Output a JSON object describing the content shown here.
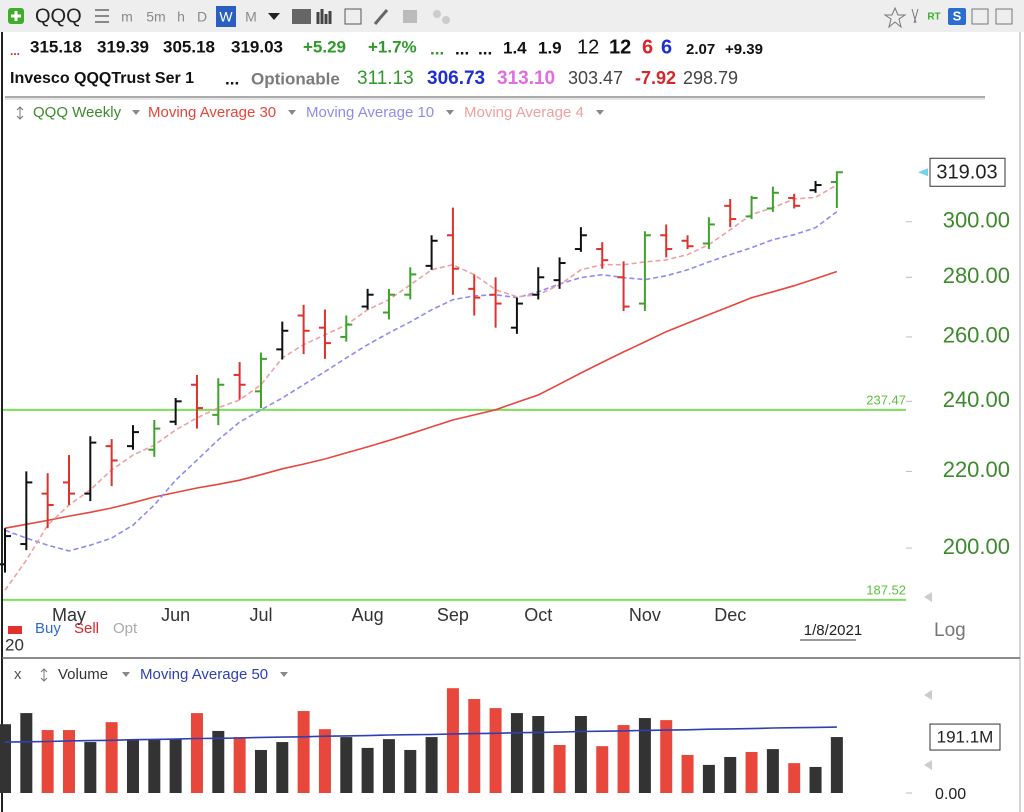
{
  "toolbar": {
    "symbol": "QQQ",
    "intervals": [
      "m",
      "5m",
      "h",
      "D",
      "W",
      "M"
    ],
    "badges": [
      "RT",
      "S"
    ]
  },
  "quote": {
    "line1": [
      "...",
      "315.18",
      "319.39",
      "305.18",
      "319.03",
      "+5.29",
      "+1.7%",
      "...",
      "...",
      "...",
      "1.4",
      "1.9",
      "12",
      "12",
      "6",
      "6",
      "2.07",
      "+9.39"
    ],
    "line2": [
      "Invesco QQQTrust Ser 1",
      "...",
      "Optionable",
      "311.13",
      "306.73",
      "313.10",
      "303.47",
      "-7.92",
      "298.79"
    ]
  },
  "ui": {
    "order_buttons": [
      "Buy",
      "Sell",
      "Opt"
    ],
    "year_fragment": "20",
    "scale_button": "Log",
    "close": "x"
  },
  "chart_data": [
    {
      "type": "ohlc",
      "name": "QQQ Weekly",
      "categories": [
        null,
        null,
        null,
        "May",
        null,
        null,
        null,
        null,
        "Jun",
        null,
        null,
        null,
        "Jul",
        null,
        null,
        null,
        null,
        "Aug",
        null,
        null,
        null,
        "Sep",
        null,
        null,
        null,
        "Oct",
        null,
        null,
        null,
        null,
        "Nov",
        null,
        null,
        null,
        "Dec",
        null,
        null,
        null,
        null,
        null
      ],
      "open": [
        196,
        201,
        214,
        217,
        214,
        227,
        227,
        226,
        234,
        245,
        236,
        248,
        243,
        256,
        267,
        263,
        260,
        270,
        268,
        274,
        284,
        295,
        276,
        274,
        263,
        274,
        279,
        290,
        290,
        280,
        271,
        295,
        293,
        292,
        306,
        302,
        305,
        309,
        312,
        315.18
      ],
      "high": [
        205,
        220,
        219.5,
        224.5,
        229.8,
        229,
        233,
        234.5,
        241,
        248,
        247,
        252,
        255,
        265,
        270.6,
        269,
        267,
        276,
        276,
        283.5,
        295,
        305.3,
        281,
        280,
        273,
        283.5,
        287,
        298,
        292.5,
        285.6,
        296.5,
        299,
        295,
        301.7,
        308.6,
        309.8,
        313.4,
        310.6,
        315.6,
        319.39
      ],
      "low": [
        194,
        199.5,
        205,
        211,
        212,
        216,
        226,
        224,
        233,
        232,
        233,
        240.5,
        238,
        252.8,
        254.5,
        253,
        258.5,
        269,
        265.7,
        272.4,
        282.6,
        274,
        267,
        263,
        261,
        272.4,
        276,
        289,
        283,
        268.5,
        268.5,
        287,
        290,
        290,
        298,
        301,
        303.7,
        305,
        311,
        305.18
      ],
      "close": [
        203,
        217,
        211,
        214,
        228,
        223,
        231,
        232,
        240,
        238,
        245,
        245,
        253,
        262,
        262,
        258,
        264,
        274,
        274,
        281,
        293,
        283,
        273,
        271,
        271,
        280,
        285,
        295,
        286,
        270,
        295,
        290,
        291,
        299,
        301,
        309,
        311,
        306,
        314,
        319.03
      ],
      "bar_colors": [
        "#111111",
        "#111111",
        "#e0312b",
        "#e0312b",
        "#111111",
        "#e0312b",
        "#111111",
        "#3ea32a",
        "#111111",
        "#e0312b",
        "#3ea32a",
        "#e0312b",
        "#3ea32a",
        "#111111",
        "#e0312b",
        "#e0312b",
        "#3ea32a",
        "#111111",
        "#3ea32a",
        "#3ea32a",
        "#111111",
        "#e0312b",
        "#e0312b",
        "#e0312b",
        "#111111",
        "#111111",
        "#111111",
        "#111111",
        "#e0312b",
        "#e0312b",
        "#3ea32a",
        "#e0312b",
        "#e0312b",
        "#3ea32a",
        "#e0312b",
        "#3ea32a",
        "#3ea32a",
        "#e0312b",
        "#111111",
        "#3ea32a"
      ],
      "lines": [
        {
          "name": "Moving Average 30",
          "color": "#e8453c",
          "dashed": false,
          "values": [
            205.0,
            206.0,
            207.0,
            208.1,
            209.1,
            210.2,
            211.6,
            213.1,
            214.3,
            215.5,
            216.5,
            217.6,
            219.1,
            220.7,
            222.0,
            223.4,
            225.1,
            226.8,
            228.6,
            230.5,
            232.5,
            234.5,
            236.0,
            237.5,
            239.7,
            241.9,
            245.2,
            248.6,
            251.9,
            255.2,
            258.4,
            261.7,
            264.5,
            267.3,
            270.1,
            273.0,
            275.0,
            277.1,
            279.5,
            282.0
          ]
        },
        {
          "name": "Moving Average 10",
          "color": "#8c8cf0",
          "dashed": true,
          "values": [
            204.5,
            202.5,
            200.7,
            199.3,
            200.7,
            202.5,
            205.8,
            211.0,
            217.6,
            223.1,
            228.8,
            233.9,
            237.5,
            241.0,
            245.0,
            249.0,
            253.3,
            257.5,
            261.3,
            264.9,
            268.9,
            272.3,
            273.6,
            274.0,
            273.0,
            275.0,
            277.7,
            279.9,
            280.9,
            279.9,
            279.2,
            280.5,
            282.6,
            285.4,
            288.0,
            290.5,
            293.4,
            295.2,
            297.8,
            303.8
          ]
        },
        {
          "name": "Moving Average 4",
          "color": "#f0a0a0",
          "dashed": true,
          "values": [
            189.8,
            197.0,
            205.8,
            211.0,
            215.0,
            220.4,
            224.5,
            227.3,
            231.6,
            235.1,
            238.1,
            240.4,
            245.0,
            253.3,
            257.5,
            260.7,
            263.9,
            268.9,
            272.3,
            277.4,
            282.6,
            284.4,
            280.9,
            275.7,
            273.3,
            274.0,
            277.4,
            282.6,
            284.4,
            284.4,
            285.4,
            286.1,
            288.0,
            291.6,
            297.0,
            302.7,
            305.3,
            308.6,
            309.2,
            314.1
          ]
        }
      ],
      "hlines": [
        237.47,
        187.52
      ],
      "hline_color": "#7de05a",
      "ylim": [
        187.5,
        349
      ],
      "log_scale": true,
      "yticks": [
        {
          "value": 200,
          "label": "200.00"
        },
        {
          "value": 220,
          "label": "220.00"
        },
        {
          "value": 240,
          "label": "240.00"
        },
        {
          "value": 260,
          "label": "260.00"
        },
        {
          "value": 280,
          "label": "280.00"
        },
        {
          "value": 300,
          "label": "300.00"
        }
      ],
      "last_value": 319.03,
      "date_label": "1/8/2021"
    },
    {
      "type": "bar",
      "name": "Volume",
      "values": [
        235,
        273,
        215,
        215,
        174,
        242,
        184,
        181,
        184,
        273,
        212,
        191,
        147,
        174,
        280,
        218,
        191,
        154,
        184,
        147,
        191,
        358,
        321,
        290,
        273,
        263,
        164,
        263,
        160,
        232,
        256,
        249,
        130,
        96,
        123,
        140,
        150,
        102,
        89,
        191.1
      ],
      "bar_colors": [
        "#333333",
        "#333333",
        "#e8483c",
        "#e8483c",
        "#333333",
        "#e8483c",
        "#333333",
        "#333333",
        "#333333",
        "#e8483c",
        "#333333",
        "#e8483c",
        "#333333",
        "#333333",
        "#e8483c",
        "#e8483c",
        "#333333",
        "#333333",
        "#333333",
        "#333333",
        "#333333",
        "#e8483c",
        "#e8483c",
        "#e8483c",
        "#333333",
        "#333333",
        "#e8483c",
        "#333333",
        "#e8483c",
        "#e8483c",
        "#333333",
        "#e8483c",
        "#e8483c",
        "#333333",
        "#333333",
        "#e8483c",
        "#333333",
        "#e8483c",
        "#333333",
        "#333333"
      ],
      "lines": [
        {
          "name": "Moving Average 50",
          "color": "#3040b0",
          "dashed": false,
          "values": [
            174,
            175,
            176,
            178,
            179,
            180,
            182,
            183,
            184,
            186,
            187,
            188,
            190,
            191,
            192,
            194,
            195,
            196,
            198,
            199,
            200,
            202,
            203,
            204,
            206,
            207,
            208,
            210,
            211,
            212,
            214,
            215,
            216,
            218,
            219,
            220,
            222,
            223,
            224,
            225
          ]
        }
      ],
      "ylim": [
        0,
        386
      ],
      "yticks": [
        {
          "value": 0,
          "label": "0.00"
        }
      ],
      "last_value": {
        "value": 191.1,
        "label": "191.1M"
      }
    }
  ]
}
